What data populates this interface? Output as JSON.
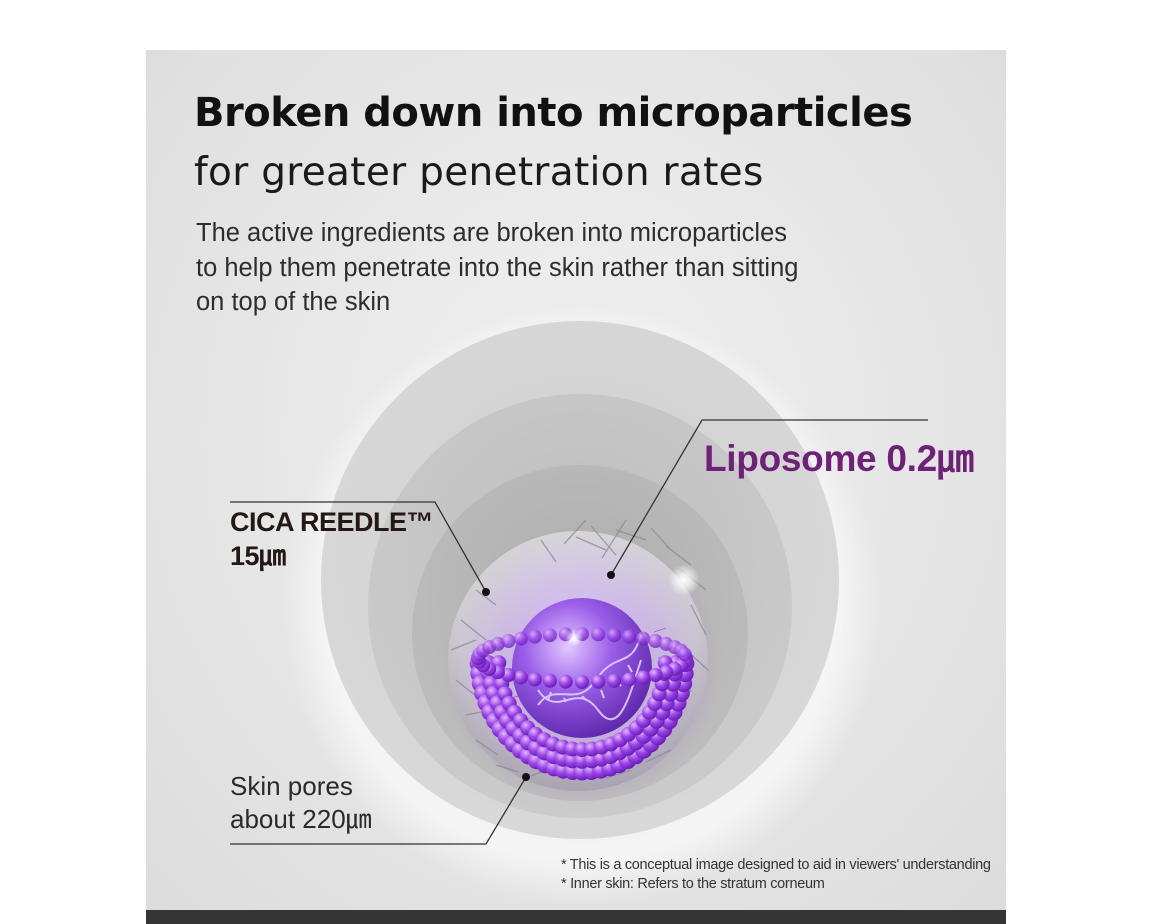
{
  "heading": {
    "title": "Broken down into microparticles",
    "subtitle": "for greater penetration rates"
  },
  "description": {
    "lines": [
      "The active ingredients are broken into microparticles",
      "to help them penetrate into the skin rather than sitting",
      "on top of the skin"
    ]
  },
  "labels": {
    "cica_line1": "CICA REEDLE™",
    "cica_line2": "15㎛",
    "liposome": "Liposome 0.2㎛",
    "skin_line1": "Skin pores",
    "skin_line2": "about 220㎛"
  },
  "notes": [
    "* This is a conceptual image designed to aid in viewers' understanding",
    "* Inner skin: Refers to the stratum corneum"
  ],
  "colors": {
    "liposome_accent": "#6e2277",
    "sphere_purple": "#8a3fe0",
    "bottom_bar": "#353535",
    "background": "#e6e6e6"
  }
}
